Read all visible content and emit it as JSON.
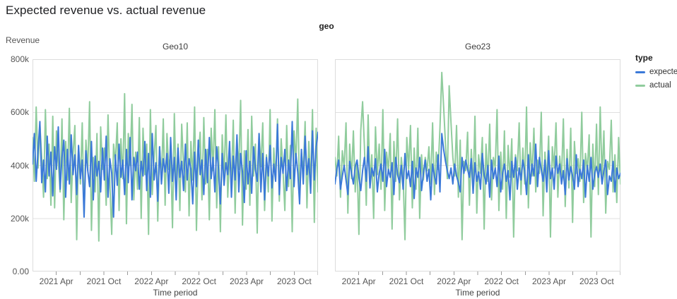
{
  "page": {
    "title": "Expected revenue vs. actual revenue"
  },
  "chart_data": {
    "type": "line",
    "title": "Expected revenue vs. actual revenue",
    "facet_header": "geo",
    "ylabel": "Revenue",
    "xlabel": "Time period",
    "value_unit": "thousands",
    "ylim_k": [
      0,
      800
    ],
    "cadence": "weekly",
    "x_domain": [
      "2021 Jan",
      "2024 Jan"
    ],
    "months_span": 36,
    "grid": "horizontal-only",
    "legend_position": "right",
    "y_ticks": [
      {
        "v": 0,
        "label": "0.00"
      },
      {
        "v": 200,
        "label": "200k"
      },
      {
        "v": 400,
        "label": "400k"
      },
      {
        "v": 600,
        "label": "600k"
      },
      {
        "v": 800,
        "label": "800k"
      }
    ],
    "x_ticks": [
      {
        "month": 3,
        "label": "2021 Apr"
      },
      {
        "month": 6,
        "label": ""
      },
      {
        "month": 9,
        "label": "2021 Oct"
      },
      {
        "month": 12,
        "label": ""
      },
      {
        "month": 15,
        "label": "2022 Apr"
      },
      {
        "month": 18,
        "label": ""
      },
      {
        "month": 21,
        "label": "2022 Oct"
      },
      {
        "month": 24,
        "label": ""
      },
      {
        "month": 27,
        "label": "2023 Apr"
      },
      {
        "month": 30,
        "label": ""
      },
      {
        "month": 33,
        "label": "2023 Oct"
      },
      {
        "month": 36,
        "label": ""
      }
    ],
    "legend": {
      "title": "type",
      "items": [
        {
          "label": "expected",
          "color": "#3b79d8"
        },
        {
          "label": "actual",
          "color": "#90cc9d"
        }
      ]
    },
    "style": {
      "grid_color": "#e0e0e0",
      "frame_color": "#dcdcdc",
      "tick_color": "#9a9a9a",
      "axis_label_color": "#565656",
      "line_width": 2
    },
    "facets": [
      {
        "title": "Geo10",
        "series": [
          {
            "name": "expected",
            "values_k": [
              405,
              520,
              340,
              455,
              565,
              335,
              420,
              300,
              510,
              360,
              450,
              285,
              470,
              385,
              545,
              310,
              430,
              495,
              280,
              460,
              330,
              515,
              365,
              440,
              290,
              475,
              350,
              420,
              205,
              455,
              380,
              320,
              490,
              270,
              435,
              360,
              415,
              300,
              465,
              345,
              510,
              280,
              425,
              370,
              205,
              440,
              325,
              480,
              355,
              420,
              290,
              460,
              335,
              505,
              270,
              430,
              380,
              450,
              310,
              415,
              360,
              490,
              305,
              445,
              280,
              520,
              345,
              410,
              265,
              470,
              330,
              425,
              375,
              445,
              295,
              505,
              340,
              430,
              270,
              465,
              355,
              415,
              305,
              480,
              345,
              425,
              385,
              255,
              450,
              320,
              495,
              365,
              420,
              290,
              460,
              335,
              505,
              350,
              430,
              300,
              470,
              385,
              255,
              445,
              325,
              410,
              365,
              490,
              280,
              435,
              345,
              515,
              300,
              445,
              375,
              260,
              455,
              330,
              415,
              295,
              470,
              385,
              340,
              520,
              300,
              445,
              270,
              430,
              360,
              475,
              315,
              405,
              340,
              555,
              290,
              430,
              370,
              460,
              305,
              420,
              350,
              565,
              320,
              445,
              375,
              255,
              460,
              330,
              510,
              365,
              425,
              295,
              530,
              345,
              470,
              525
            ]
          },
          {
            "name": "actual",
            "values_k": [
              505,
              340,
              620,
              390,
              555,
              430,
              280,
              610,
              350,
              480,
              250,
              585,
              240,
              530,
              415,
              300,
              575,
              195,
              490,
              345,
              615,
              260,
              440,
              550,
              120,
              470,
              330,
              560,
              210,
              495,
              380,
              640,
              155,
              430,
              300,
              520,
              115,
              545,
              385,
              465,
              250,
              590,
              330,
              140,
              480,
              410,
              560,
              230,
              500,
              350,
              670,
              180,
              520,
              400,
              630,
              270,
              450,
              310,
              580,
              200,
              540,
              365,
              480,
              140,
              610,
              290,
              430,
              550,
              190,
              470,
              340,
              575,
              250,
              520,
              385,
              450,
              165,
              595,
              310,
              480,
              230,
              555,
              400,
              300,
              560,
              210,
              490,
              345,
              620,
              155,
              430,
              525,
              270,
              580,
              330,
              460,
              195,
              540,
              380,
              610,
              240,
              470,
              150,
              515,
              350,
              590,
              280,
              445,
              330,
              570,
              220,
              495,
              385,
              645,
              175,
              455,
              310,
              535,
              250,
              585,
              360,
              480,
              145,
              520,
              395,
              560,
              230,
              440,
              300,
              610,
              190,
              465,
              345,
              575,
              265,
              500,
              380,
              230,
              550,
              320,
              475,
              150,
              530,
              410,
              650,
              280,
              450,
              370,
              565,
              240,
              490,
              320,
              610,
              185,
              540,
              300
            ]
          }
        ]
      },
      {
        "title": "Geo23",
        "series": [
          {
            "name": "expected",
            "values_k": [
              330,
              385,
              420,
              310,
              360,
              400,
              345,
              290,
              415,
              370,
              330,
              395,
              420,
              355,
              305,
              380,
              430,
              340,
              470,
              315,
              390,
              360,
              425,
              300,
              370,
              405,
              340,
              460,
              320,
              385,
              355,
              410,
              290,
              430,
              365,
              335,
              400,
              310,
              445,
              350,
              380,
              320,
              415,
              275,
              390,
              355,
              430,
              305,
              370,
              420,
              340,
              385,
              270,
              405,
              360,
              330,
              440,
              300,
              520,
              460,
              415,
              380,
              350,
              390,
              330,
              405,
              360,
              335,
              300,
              430,
              370,
              420,
              385,
              355,
              425,
              295,
              410,
              340,
              375,
              310,
              445,
              365,
              330,
              400,
              280,
              420,
              350,
              390,
              320,
              435,
              300,
              370,
              405,
              340,
              380,
              270,
              415,
              355,
              430,
              310,
              390,
              345,
              420,
              380,
              290,
              440,
              330,
              405,
              360,
              480,
              320,
              430,
              385,
              340,
              420,
              300,
              455,
              350,
              390,
              310,
              435,
              370,
              405,
              330,
              380,
              290,
              425,
              345,
              395,
              360,
              310,
              440,
              320,
              385,
              350,
              420,
              280,
              400,
              340,
              430,
              310,
              370,
              395,
              355,
              405,
              330,
              380,
              420,
              290,
              360,
              340,
              415,
              300,
              390,
              350,
              370
            ]
          },
          {
            "name": "actual",
            "values_k": [
              430,
              360,
              510,
              280,
              455,
              390,
              560,
              220,
              480,
              350,
              530,
              300,
              415,
              140,
              530,
              640,
              470,
              250,
              590,
              330,
              440,
              200,
              545,
              365,
              480,
              310,
              610,
              230,
              450,
              380,
              520,
              160,
              490,
              340,
              575,
              270,
              430,
              360,
              120,
              505,
              385,
              550,
              240,
              465,
              310,
              540,
              200,
              440,
              345,
              430,
              380,
              470,
              330,
              560,
              290,
              450,
              385,
              540,
              750,
              620,
              480,
              350,
              700,
              560,
              430,
              360,
              550,
              280,
              495,
              120,
              415,
              380,
              525,
              250,
              460,
              310,
              585,
              220,
              440,
              370,
              505,
              160,
              480,
              340,
              555,
              270,
              430,
              390,
              610,
              230,
              450,
              310,
              530,
              200,
              475,
              355,
              500,
              130,
              440,
              380,
              560,
              290,
              465,
              330,
              620,
              240,
              485,
              360,
              540,
              300,
              420,
              370,
              600,
              210,
              450,
              340,
              510,
              130,
              470,
              390,
              560,
              280,
              435,
              355,
              575,
              245,
              460,
              315,
              540,
              185,
              490,
              370,
              425,
              340,
              600,
              260,
              445,
              380,
              515,
              130,
              480,
              320,
              555,
              290,
              620,
              350,
              530,
              220,
              415,
              385,
              570,
              300,
              440,
              260,
              505,
              330
            ]
          }
        ]
      }
    ]
  }
}
